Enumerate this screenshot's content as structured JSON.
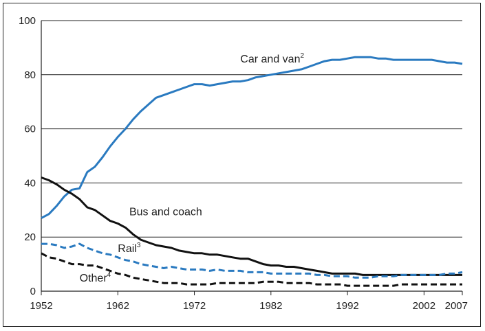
{
  "chart_data": {
    "type": "line",
    "title": "",
    "xlabel": "",
    "ylabel": "",
    "xlim": [
      1952,
      2007
    ],
    "ylim": [
      0,
      100
    ],
    "xticks": [
      1952,
      1962,
      1972,
      1982,
      1992,
      2002,
      2007
    ],
    "yticks": [
      0,
      20,
      40,
      60,
      80,
      100
    ],
    "grid": "horizontal",
    "series": [
      {
        "name": "Car and van",
        "name_sup": "2",
        "color": "#2a7ac0",
        "style": "solid",
        "x": [
          1952,
          1953,
          1954,
          1955,
          1956,
          1957,
          1958,
          1959,
          1960,
          1961,
          1962,
          1963,
          1964,
          1965,
          1966,
          1967,
          1968,
          1969,
          1970,
          1971,
          1972,
          1973,
          1974,
          1975,
          1976,
          1977,
          1978,
          1979,
          1980,
          1981,
          1982,
          1983,
          1984,
          1985,
          1986,
          1987,
          1988,
          1989,
          1990,
          1991,
          1992,
          1993,
          1994,
          1995,
          1996,
          1997,
          1998,
          1999,
          2000,
          2001,
          2002,
          2003,
          2004,
          2005,
          2006,
          2007
        ],
        "values": [
          27,
          28.5,
          31.5,
          35,
          37.5,
          38,
          44,
          46,
          49.5,
          53.5,
          57,
          60,
          63.5,
          66.5,
          69,
          71.5,
          72.5,
          73.5,
          74.5,
          75.5,
          76.5,
          76.5,
          76,
          76.5,
          77,
          77.5,
          77.5,
          78,
          79,
          79.5,
          80,
          80.5,
          81,
          81.5,
          82,
          83,
          84,
          85,
          85.5,
          85.5,
          86,
          86.5,
          86.5,
          86.5,
          86,
          86,
          85.5,
          85.5,
          85.5,
          85.5,
          85.5,
          85.5,
          85,
          84.5,
          84.5,
          84
        ]
      },
      {
        "name": "Bus and coach",
        "name_sup": "",
        "color": "#111111",
        "style": "solid",
        "x": [
          1952,
          1953,
          1954,
          1955,
          1956,
          1957,
          1958,
          1959,
          1960,
          1961,
          1962,
          1963,
          1964,
          1965,
          1966,
          1967,
          1968,
          1969,
          1970,
          1971,
          1972,
          1973,
          1974,
          1975,
          1976,
          1977,
          1978,
          1979,
          1980,
          1981,
          1982,
          1983,
          1984,
          1985,
          1986,
          1987,
          1988,
          1989,
          1990,
          1991,
          1992,
          1993,
          1994,
          1995,
          1996,
          1997,
          1998,
          1999,
          2000,
          2001,
          2002,
          2003,
          2004,
          2005,
          2006,
          2007
        ],
        "values": [
          42,
          41,
          39.5,
          37.5,
          36,
          34,
          31,
          30,
          28,
          26,
          25,
          23.5,
          21,
          19,
          18,
          17,
          16.5,
          16,
          15,
          14.5,
          14,
          14,
          13.5,
          13.5,
          13,
          12.5,
          12,
          12,
          11,
          10,
          9.5,
          9.5,
          9,
          9,
          8.5,
          8,
          7.5,
          7,
          6.5,
          6.5,
          6.5,
          6.5,
          6,
          6,
          6,
          6,
          6,
          6,
          6,
          6,
          6,
          6,
          6,
          6,
          6,
          6
        ]
      },
      {
        "name": "Rail",
        "name_sup": "3",
        "color": "#2a7ac0",
        "style": "dashed",
        "x": [
          1952,
          1953,
          1954,
          1955,
          1956,
          1957,
          1958,
          1959,
          1960,
          1961,
          1962,
          1963,
          1964,
          1965,
          1966,
          1967,
          1968,
          1969,
          1970,
          1971,
          1972,
          1973,
          1974,
          1975,
          1976,
          1977,
          1978,
          1979,
          1980,
          1981,
          1982,
          1983,
          1984,
          1985,
          1986,
          1987,
          1988,
          1989,
          1990,
          1991,
          1992,
          1993,
          1994,
          1995,
          1996,
          1997,
          1998,
          1999,
          2000,
          2001,
          2002,
          2003,
          2004,
          2005,
          2006,
          2007
        ],
        "values": [
          17.5,
          17.5,
          17,
          16,
          16.5,
          17.5,
          16,
          15,
          14,
          13.5,
          12.5,
          11.5,
          11,
          10,
          9.5,
          9,
          8.5,
          9,
          8.5,
          8,
          8,
          8,
          7.5,
          8,
          7.5,
          7.5,
          7.5,
          7,
          7,
          7,
          6.5,
          6.5,
          6.5,
          6.5,
          6.5,
          6.5,
          6,
          6,
          5.5,
          5.5,
          5.5,
          5,
          5,
          5,
          5.5,
          5.5,
          5.5,
          6,
          6,
          6,
          6,
          6,
          6,
          6.5,
          6.5,
          7
        ]
      },
      {
        "name": "Other",
        "name_sup": "4",
        "color": "#111111",
        "style": "dashed",
        "x": [
          1952,
          1953,
          1954,
          1955,
          1956,
          1957,
          1958,
          1959,
          1960,
          1961,
          1962,
          1963,
          1964,
          1965,
          1966,
          1967,
          1968,
          1969,
          1970,
          1971,
          1972,
          1973,
          1974,
          1975,
          1976,
          1977,
          1978,
          1979,
          1980,
          1981,
          1982,
          1983,
          1984,
          1985,
          1986,
          1987,
          1988,
          1989,
          1990,
          1991,
          1992,
          1993,
          1994,
          1995,
          1996,
          1997,
          1998,
          1999,
          2000,
          2001,
          2002,
          2003,
          2004,
          2005,
          2006,
          2007
        ],
        "values": [
          14,
          12.5,
          12,
          11,
          10,
          10,
          9.5,
          9.5,
          8.5,
          7.5,
          6.5,
          6,
          5,
          4.5,
          4,
          3.5,
          3,
          3,
          3,
          2.5,
          2.5,
          2.5,
          2.5,
          3,
          3,
          3,
          3,
          3,
          3,
          3.5,
          3.5,
          3.5,
          3,
          3,
          3,
          3,
          2.5,
          2.5,
          2.5,
          2.5,
          2,
          2,
          2,
          2,
          2,
          2,
          2,
          2.5,
          2.5,
          2.5,
          2.5,
          2.5,
          2.5,
          2.5,
          2.5,
          2.5
        ]
      }
    ],
    "annotations": [
      {
        "series": "Car and van",
        "text": "Car and van",
        "sup": "2",
        "x": 1978,
        "y": 84.5
      },
      {
        "series": "Bus and coach",
        "text": "Bus and coach",
        "sup": "",
        "x": 1963.5,
        "y": 28
      },
      {
        "series": "Rail",
        "text": "Rail",
        "sup": "3",
        "x": 1962,
        "y": 14.5
      },
      {
        "series": "Other",
        "text": "Other",
        "sup": "4",
        "x": 1957,
        "y": 3.5
      }
    ]
  }
}
